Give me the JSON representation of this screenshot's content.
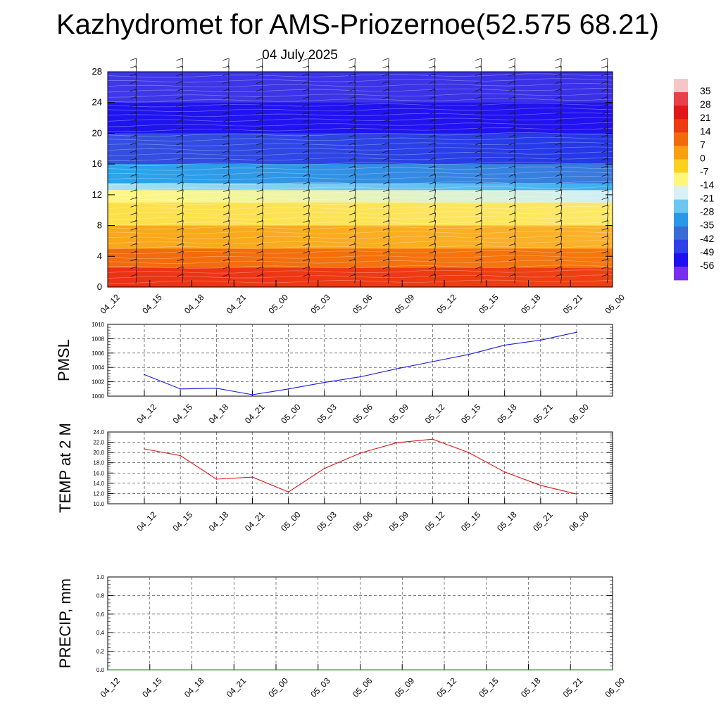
{
  "header": {
    "title": "Kazhydromet for AMS-Priozernoe(52.575 68.21)",
    "subtitle": "04 July 2025"
  },
  "chart_data": [
    {
      "type": "heatmap",
      "panel": "cross-section",
      "x_ticks": [
        "04_12",
        "04_15",
        "04_18",
        "04_21",
        "05_00",
        "05_03",
        "05_06",
        "05_09",
        "05_12",
        "05_15",
        "05_18",
        "05_21",
        "06_00"
      ],
      "y_ticks": [
        0,
        4,
        8,
        12,
        16,
        20,
        24,
        28
      ],
      "ylim": [
        0,
        28
      ],
      "colorbar": {
        "labels": [
          "35",
          "28",
          "21",
          "14",
          "7",
          "0",
          "-7",
          "-14",
          "-21",
          "-28",
          "-35",
          "-42",
          "-49",
          "-56"
        ],
        "stops": [
          "#f5c6c6",
          "#e8404a",
          "#e01818",
          "#ee3a10",
          "#f26a0c",
          "#f8a010",
          "#fcd020",
          "#fff77a",
          "#d8f0f8",
          "#6cc6f0",
          "#2a98e8",
          "#3a6cd8",
          "#3040e8",
          "#2010f0",
          "#7a2ef0"
        ]
      },
      "layers": [
        {
          "y_top": 28,
          "color_left": "#3e38e8",
          "color_right": "#3a30e8"
        },
        {
          "y_top": 24,
          "color_left": "#1f14f0",
          "color_right": "#2212f0"
        },
        {
          "y_top": 20,
          "color_left": "#3550e0",
          "color_right": "#2436ea"
        },
        {
          "y_top": 16,
          "color_left": "#2aa6ec",
          "color_right": "#3a78dc"
        },
        {
          "y_top": 13.5,
          "color_left": "#a8e0f4",
          "color_right": "#3aaef0"
        },
        {
          "y_top": 12.6,
          "color_left": "#fff77a",
          "color_right": "#cfeff8"
        },
        {
          "y_top": 11,
          "color_left": "#fce048",
          "color_right": "#fde868"
        },
        {
          "y_top": 8,
          "color_left": "#f8a818",
          "color_right": "#fab22a"
        },
        {
          "y_top": 5,
          "color_left": "#f26a0c",
          "color_right": "#f5780e"
        },
        {
          "y_top": 2.5,
          "color_left": "#ec3214",
          "color_right": "#ef4012"
        },
        {
          "y_top": 0,
          "color_left": "#e51a18",
          "color_right": "#e81e18"
        }
      ]
    },
    {
      "type": "line",
      "ylabel": "PMSL",
      "x": [
        "04_12",
        "04_15",
        "04_18",
        "04_21",
        "05_00",
        "05_03",
        "05_06",
        "05_09",
        "05_12",
        "05_15",
        "05_18",
        "05_21",
        "06_00"
      ],
      "y_ticks": [
        "1000",
        "1002",
        "1004",
        "1006",
        "1008",
        "1010"
      ],
      "ylim": [
        1000,
        1010
      ],
      "series": [
        {
          "color": "#1a1ae0",
          "values": [
            1003.0,
            1001.0,
            1001.1,
            1000.2,
            1001.0,
            1001.9,
            1002.7,
            1003.8,
            1004.8,
            1005.8,
            1007.1,
            1007.8,
            1008.9
          ]
        }
      ]
    },
    {
      "type": "line",
      "ylabel": "TEMP at 2 M",
      "x": [
        "04_12",
        "04_15",
        "04_18",
        "04_21",
        "05_00",
        "05_03",
        "05_06",
        "05_09",
        "05_12",
        "05_15",
        "05_18",
        "05_21",
        "06_00"
      ],
      "y_ticks": [
        "10.0",
        "12.0",
        "14.0",
        "16.0",
        "18.0",
        "20.0",
        "22.0",
        "24.0"
      ],
      "ylim": [
        10,
        24
      ],
      "series": [
        {
          "color": "#e01414",
          "values": [
            20.7,
            19.4,
            14.8,
            15.2,
            12.3,
            16.9,
            19.9,
            21.9,
            22.6,
            20.0,
            16.2,
            13.6,
            11.9
          ]
        }
      ]
    },
    {
      "type": "line",
      "ylabel": "PRECIP, mm",
      "x": [
        "04_12",
        "04_15",
        "04_18",
        "04_21",
        "05_00",
        "05_03",
        "05_06",
        "05_09",
        "05_12",
        "05_15",
        "05_18",
        "05_21",
        "06_00"
      ],
      "y_ticks": [
        "0.0",
        "0.2",
        "0.4",
        "0.6",
        "0.8",
        "1.0"
      ],
      "ylim": [
        0,
        1
      ],
      "series": [
        {
          "color": "#1a7a1a",
          "values": [
            0,
            0,
            0,
            0,
            0,
            0,
            0,
            0,
            0,
            0,
            0,
            0,
            0
          ]
        }
      ]
    }
  ]
}
